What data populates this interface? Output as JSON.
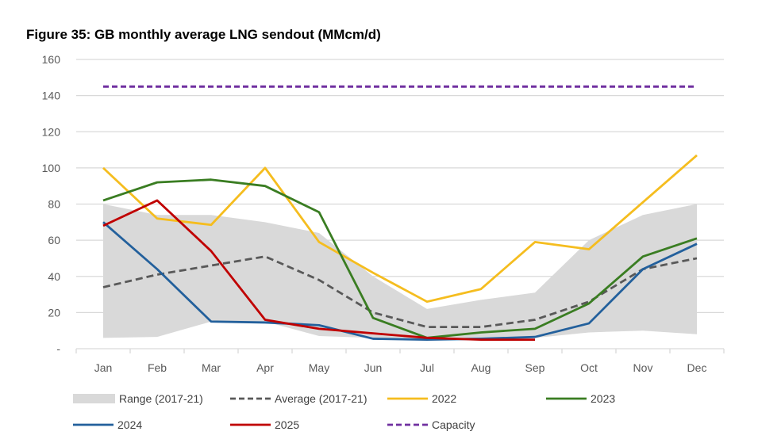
{
  "chart_data": {
    "type": "line",
    "title": "Figure 35: GB monthly average LNG sendout (MMcm/d)",
    "categories": [
      "Jan",
      "Feb",
      "Mar",
      "Apr",
      "May",
      "Jun",
      "Jul",
      "Aug",
      "Sep",
      "Oct",
      "Nov",
      "Dec"
    ],
    "ylim": [
      0,
      160
    ],
    "yticks": [
      0,
      20,
      40,
      60,
      80,
      100,
      120,
      140,
      160
    ],
    "ytick_labels": [
      "-",
      "20",
      "40",
      "60",
      "80",
      "100",
      "120",
      "140",
      "160"
    ],
    "grid": true,
    "legend_placement": "bottom",
    "range": {
      "name": "Range (2017-21)",
      "color": "#d9d9d9",
      "upper": [
        80,
        74,
        74,
        70,
        64,
        40,
        22,
        27,
        31,
        60,
        74,
        80
      ],
      "lower": [
        6,
        6.5,
        15,
        15,
        7,
        6,
        5,
        5,
        6,
        9,
        10,
        8
      ]
    },
    "series": [
      {
        "name": "Average (2017-21)",
        "color": "#595959",
        "dash": true,
        "values": [
          34,
          41,
          46,
          51,
          38,
          20,
          12,
          12,
          16,
          26,
          44,
          50
        ]
      },
      {
        "name": "2022",
        "color": "#f5bd1f",
        "dash": false,
        "values": [
          100,
          72,
          68.5,
          100,
          59,
          42,
          26,
          33,
          59,
          55,
          81,
          107
        ]
      },
      {
        "name": "2023",
        "color": "#3a7d22",
        "dash": false,
        "values": [
          82,
          92,
          93.5,
          90,
          75.5,
          17,
          6,
          9,
          11,
          25,
          51,
          61
        ]
      },
      {
        "name": "2024",
        "color": "#23609c",
        "dash": false,
        "values": [
          70,
          44,
          15,
          14.5,
          13,
          5.5,
          5,
          5.5,
          6.5,
          14,
          44,
          58
        ]
      },
      {
        "name": "2025",
        "color": "#c00000",
        "dash": false,
        "values": [
          68,
          82,
          54,
          16,
          11,
          8.5,
          6,
          5,
          5,
          null,
          null,
          null
        ]
      },
      {
        "name": "Capacity",
        "color": "#7030a0",
        "dash": true,
        "values": [
          145,
          145,
          145,
          145,
          145,
          145,
          145,
          145,
          145,
          145,
          145,
          145
        ]
      }
    ]
  }
}
